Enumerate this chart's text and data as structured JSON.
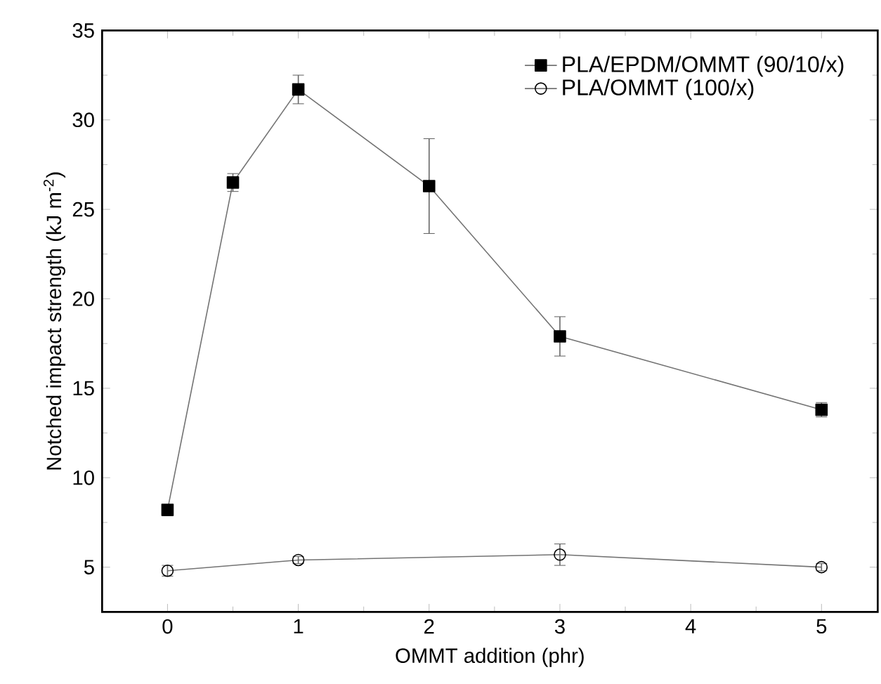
{
  "chart_data": {
    "type": "line",
    "xlabel": "OMMT addition (phr)",
    "ylabel": "Notched impact strength (kJ m$^{-2}$)",
    "xlim": [
      -0.5,
      5.43
    ],
    "xticks": [
      0,
      1,
      2,
      3,
      4,
      5
    ],
    "ylim": [
      2.5,
      35
    ],
    "yticks": [
      5,
      10,
      15,
      20,
      25,
      30,
      35
    ],
    "legend": "top right",
    "line_style": "solid",
    "grid": false,
    "series": [
      {
        "name": "PLA/EPDM/OMMT (90/10/x)",
        "color": "#000000",
        "marker": "square",
        "x": [
          0,
          0.5,
          1,
          2,
          3,
          5
        ],
        "values": [
          8.2,
          26.5,
          31.7,
          26.3,
          17.9,
          13.8
        ],
        "errors": [
          0.2,
          0.5,
          0.8,
          2.65,
          1.1,
          0.4
        ]
      },
      {
        "name": "PLA/OMMT (100/x)",
        "color": "#000000",
        "marker": "circle",
        "x": [
          0,
          1,
          3,
          5
        ],
        "values": [
          4.8,
          5.4,
          5.7,
          5.0
        ],
        "errors": [
          0.3,
          0.2,
          0.6,
          0.2
        ]
      }
    ]
  }
}
